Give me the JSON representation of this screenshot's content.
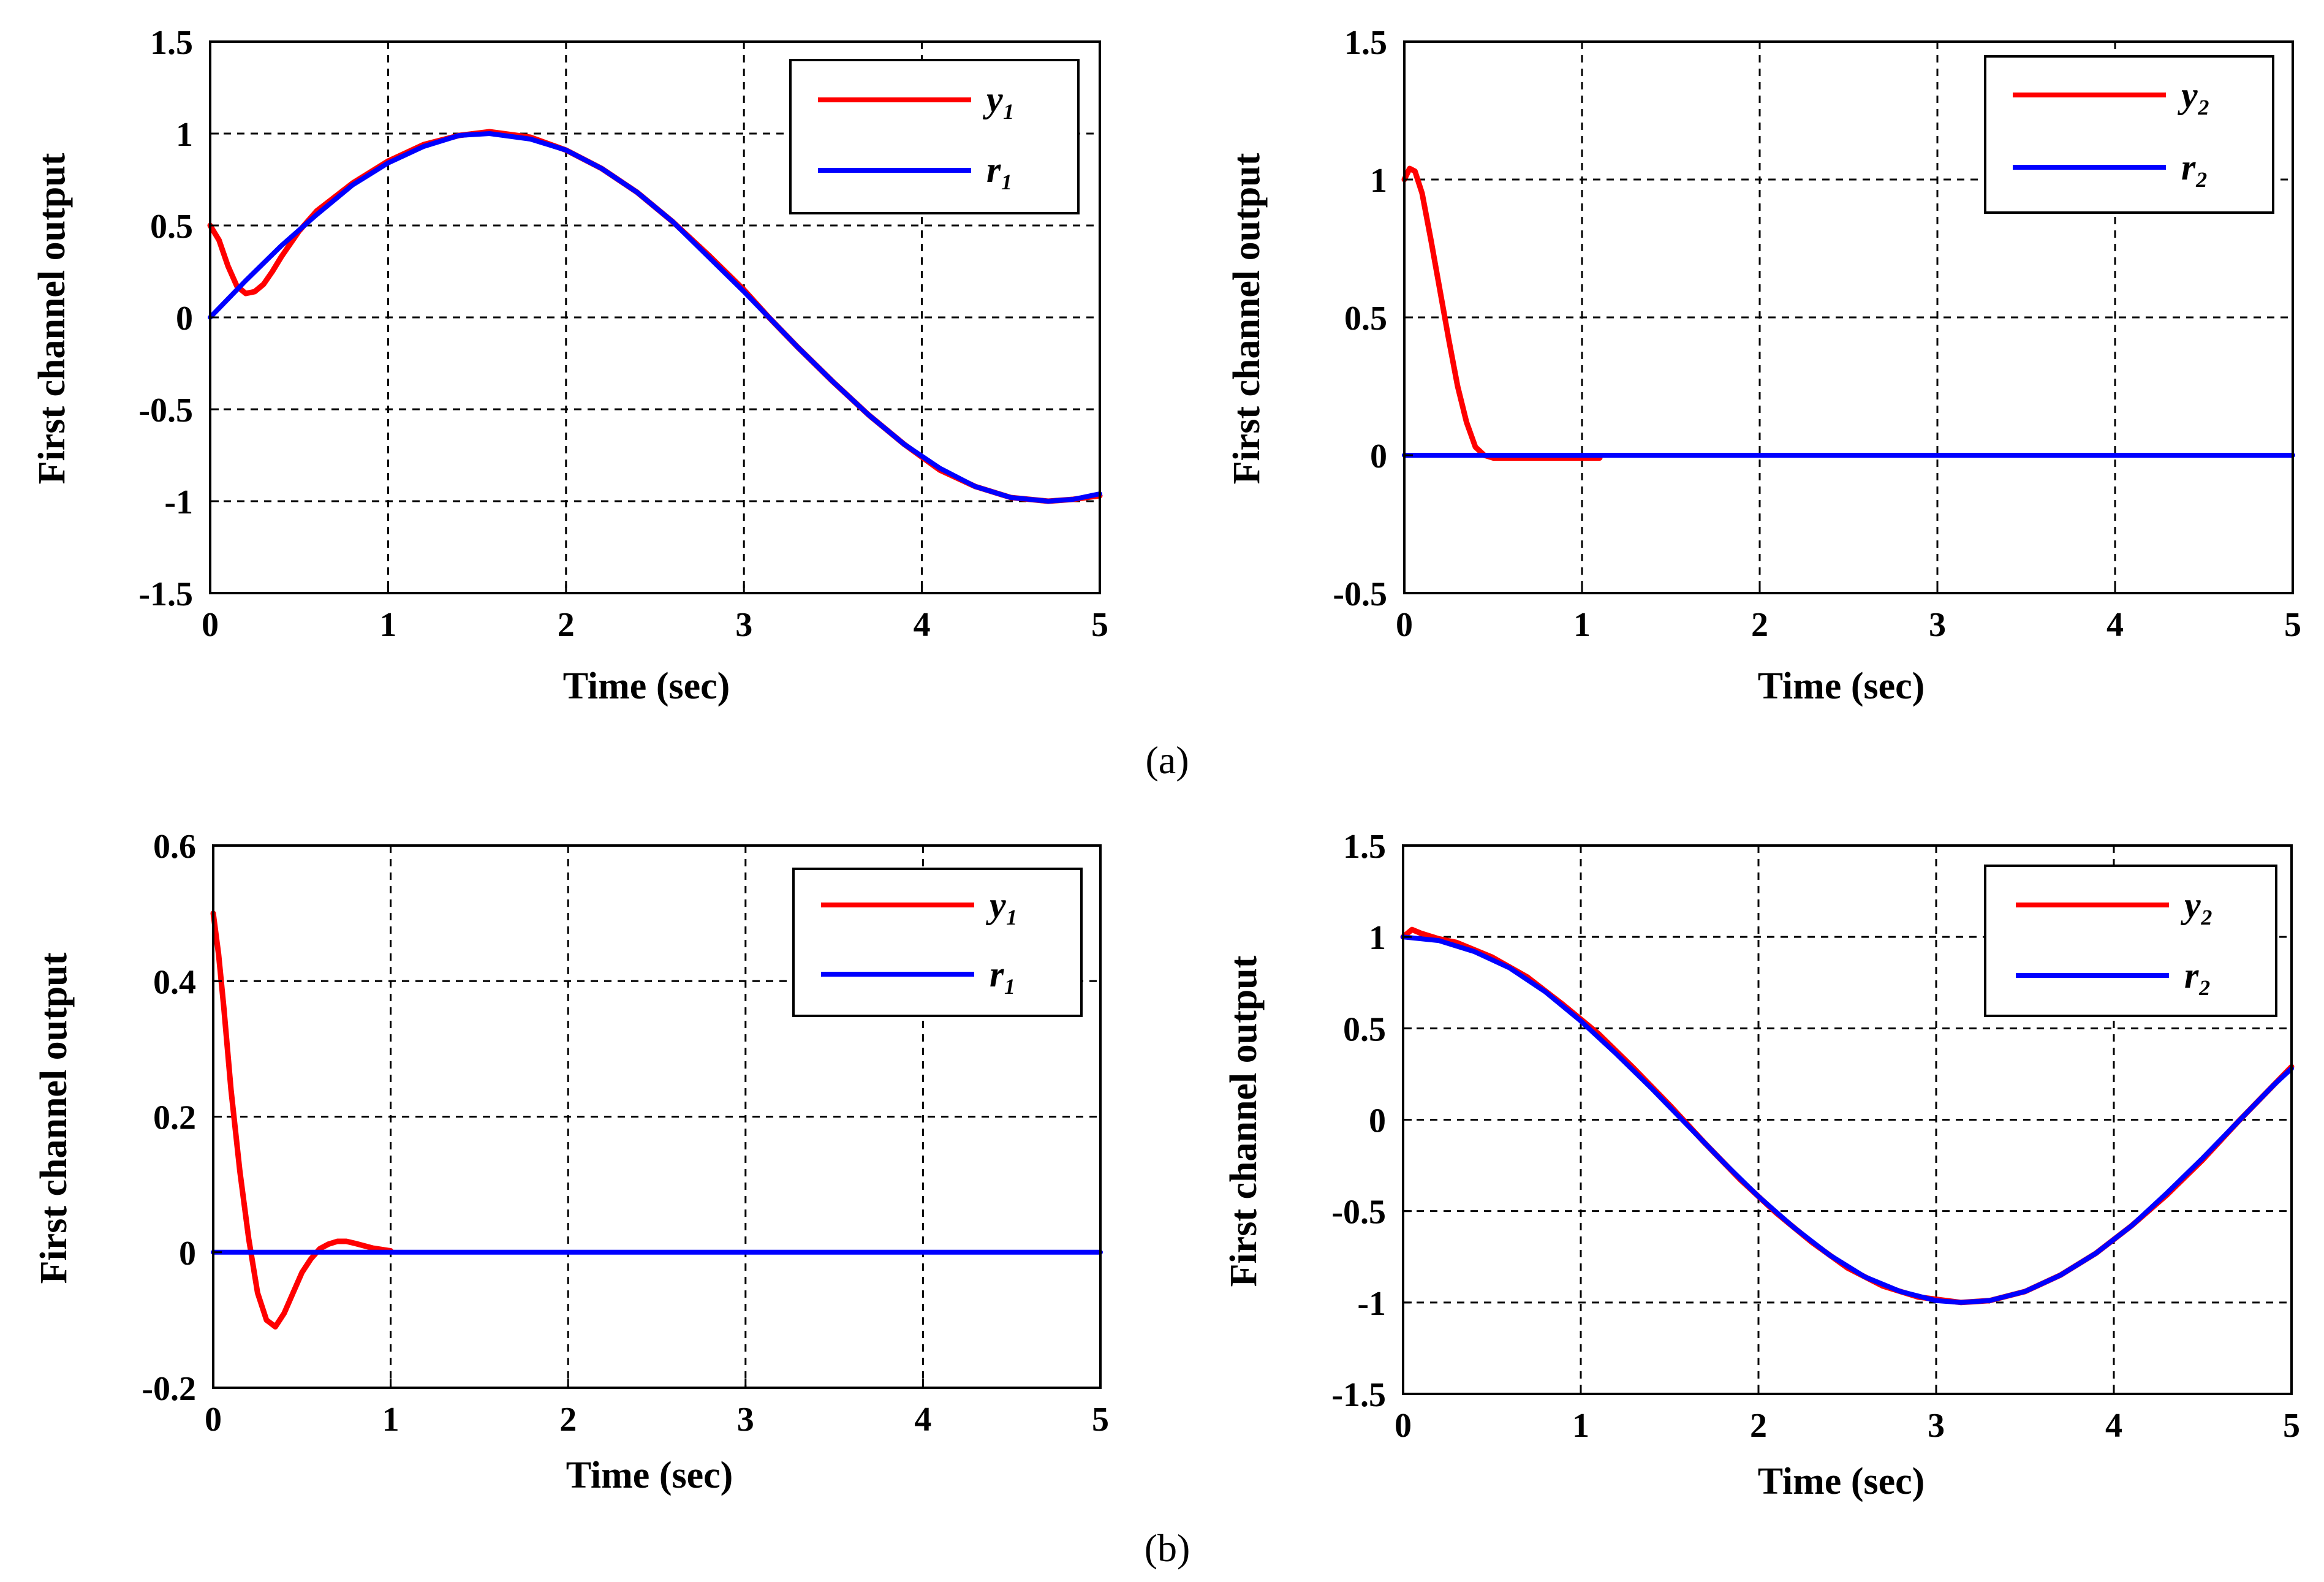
{
  "figure": {
    "captions": [
      "(a)",
      "(b)"
    ]
  },
  "colors": {
    "output": "#ff0000",
    "reference": "#0000ff",
    "grid": "#000000",
    "frame": "#000000"
  },
  "chart_data": [
    {
      "id": "a-left",
      "type": "line",
      "xlabel": "Time (sec)",
      "ylabel": "First channel output",
      "xlim": [
        0,
        5
      ],
      "ylim": [
        -1.5,
        1.5
      ],
      "xticks": [
        0,
        1,
        2,
        3,
        4,
        5
      ],
      "yticks": [
        -1.5,
        -1,
        -0.5,
        0,
        0.5,
        1,
        1.5
      ],
      "xtick_labels": [
        "0",
        "1",
        "2",
        "3",
        "4",
        "5"
      ],
      "ytick_labels": [
        "-1.5",
        "-1",
        "-0.5",
        "0",
        "0.5",
        "1",
        "1.5"
      ],
      "grid": true,
      "legend_position": "top-right",
      "series": [
        {
          "name": "y₁",
          "color": "#ff0000",
          "x": [
            0,
            0.05,
            0.1,
            0.15,
            0.2,
            0.25,
            0.3,
            0.35,
            0.4,
            0.5,
            0.6,
            0.8,
            1.0,
            1.2,
            1.4,
            1.57,
            1.8,
            2.0,
            2.2,
            2.4,
            2.6,
            2.8,
            3.0,
            3.14,
            3.3,
            3.5,
            3.7,
            3.9,
            4.1,
            4.3,
            4.5,
            4.71,
            4.85,
            5.0
          ],
          "y": [
            0.5,
            0.42,
            0.28,
            0.17,
            0.13,
            0.14,
            0.18,
            0.25,
            0.33,
            0.47,
            0.58,
            0.73,
            0.85,
            0.94,
            0.99,
            1.01,
            0.98,
            0.91,
            0.81,
            0.68,
            0.52,
            0.34,
            0.15,
            0.0,
            -0.16,
            -0.35,
            -0.53,
            -0.69,
            -0.83,
            -0.92,
            -0.98,
            -1.0,
            -0.99,
            -0.97
          ]
        },
        {
          "name": "r₁",
          "color": "#0000ff",
          "x": [
            0,
            0.2,
            0.4,
            0.6,
            0.8,
            1.0,
            1.2,
            1.4,
            1.57,
            1.8,
            2.0,
            2.2,
            2.4,
            2.6,
            2.8,
            3.0,
            3.14,
            3.3,
            3.5,
            3.7,
            3.9,
            4.1,
            4.3,
            4.5,
            4.71,
            4.85,
            5.0
          ],
          "y": [
            0.0,
            0.2,
            0.39,
            0.56,
            0.72,
            0.84,
            0.93,
            0.99,
            1.0,
            0.97,
            0.91,
            0.81,
            0.68,
            0.52,
            0.33,
            0.14,
            0.0,
            -0.16,
            -0.35,
            -0.53,
            -0.69,
            -0.82,
            -0.92,
            -0.98,
            -1.0,
            -0.99,
            -0.96
          ]
        }
      ],
      "legend": [
        "y₁",
        "r₁"
      ]
    },
    {
      "id": "a-right",
      "type": "line",
      "xlabel": "Time (sec)",
      "ylabel": "First channel output",
      "xlim": [
        0,
        5
      ],
      "ylim": [
        -0.5,
        1.5
      ],
      "xticks": [
        0,
        1,
        2,
        3,
        4,
        5
      ],
      "yticks": [
        -0.5,
        0,
        0.5,
        1,
        1.5
      ],
      "xtick_labels": [
        "0",
        "1",
        "2",
        "3",
        "4",
        "5"
      ],
      "ytick_labels": [
        "-0.5",
        "0",
        "0.5",
        "1",
        "1.5"
      ],
      "grid": true,
      "legend_position": "top-right",
      "series": [
        {
          "name": "y₂",
          "color": "#ff0000",
          "x": [
            0,
            0.03,
            0.06,
            0.1,
            0.15,
            0.2,
            0.25,
            0.3,
            0.35,
            0.4,
            0.45,
            0.5,
            0.7,
            0.9,
            1.1
          ],
          "y": [
            1.0,
            1.04,
            1.03,
            0.95,
            0.78,
            0.6,
            0.42,
            0.25,
            0.12,
            0.03,
            0.0,
            -0.01,
            -0.01,
            -0.01,
            -0.01
          ]
        },
        {
          "name": "r₂",
          "color": "#0000ff",
          "x": [
            0,
            5
          ],
          "y": [
            0,
            0
          ]
        }
      ],
      "legend": [
        "y₂",
        "r₂"
      ]
    },
    {
      "id": "b-left",
      "type": "line",
      "xlabel": "Time (sec)",
      "ylabel": "First channel output",
      "xlim": [
        0,
        5
      ],
      "ylim": [
        -0.2,
        0.6
      ],
      "xticks": [
        0,
        1,
        2,
        3,
        4,
        5
      ],
      "yticks": [
        -0.2,
        0,
        0.2,
        0.4,
        0.6
      ],
      "xtick_labels": [
        "0",
        "1",
        "2",
        "3",
        "4",
        "5"
      ],
      "ytick_labels": [
        "-0.2",
        "0",
        "0.2",
        "0.4",
        "0.6"
      ],
      "grid": true,
      "legend_position": "top-right",
      "series": [
        {
          "name": "y₁",
          "color": "#ff0000",
          "x": [
            0,
            0.03,
            0.06,
            0.1,
            0.15,
            0.2,
            0.25,
            0.3,
            0.35,
            0.4,
            0.45,
            0.5,
            0.55,
            0.6,
            0.65,
            0.7,
            0.75,
            0.8,
            0.9,
            1.0
          ],
          "y": [
            0.5,
            0.44,
            0.36,
            0.24,
            0.12,
            0.02,
            -0.06,
            -0.1,
            -0.11,
            -0.09,
            -0.06,
            -0.03,
            -0.01,
            0.005,
            0.012,
            0.016,
            0.016,
            0.013,
            0.006,
            0.002
          ]
        },
        {
          "name": "r₁",
          "color": "#0000ff",
          "x": [
            0,
            5
          ],
          "y": [
            0,
            0
          ]
        }
      ],
      "legend": [
        "y₁",
        "r₁"
      ]
    },
    {
      "id": "b-right",
      "type": "line",
      "xlabel": "Time (sec)",
      "ylabel": "First channel output",
      "xlim": [
        0,
        5
      ],
      "ylim": [
        -1.5,
        1.5
      ],
      "xticks": [
        0,
        1,
        2,
        3,
        4,
        5
      ],
      "yticks": [
        -1.5,
        -1,
        -0.5,
        0,
        0.5,
        1,
        1.5
      ],
      "xtick_labels": [
        "0",
        "1",
        "2",
        "3",
        "4",
        "5"
      ],
      "ytick_labels": [
        "-1.5",
        "-1",
        "-0.5",
        "0",
        "0.5",
        "1",
        "1.5"
      ],
      "grid": true,
      "legend_position": "top-right",
      "series": [
        {
          "name": "y₂",
          "color": "#ff0000",
          "x": [
            0,
            0.05,
            0.1,
            0.2,
            0.3,
            0.5,
            0.7,
            0.9,
            1.1,
            1.3,
            1.5,
            1.7,
            1.9,
            2.1,
            2.3,
            2.5,
            2.7,
            2.9,
            3.14,
            3.3,
            3.5,
            3.7,
            3.9,
            4.1,
            4.3,
            4.5,
            4.7,
            4.9,
            5.0
          ],
          "y": [
            1.0,
            1.04,
            1.02,
            0.99,
            0.97,
            0.89,
            0.78,
            0.63,
            0.47,
            0.28,
            0.08,
            -0.13,
            -0.33,
            -0.51,
            -0.67,
            -0.81,
            -0.91,
            -0.97,
            -1.0,
            -0.99,
            -0.94,
            -0.85,
            -0.73,
            -0.58,
            -0.41,
            -0.22,
            -0.01,
            0.19,
            0.29
          ]
        },
        {
          "name": "r₂",
          "color": "#0000ff",
          "x": [
            0,
            0.2,
            0.4,
            0.6,
            0.8,
            1.0,
            1.2,
            1.4,
            1.6,
            1.8,
            2.0,
            2.2,
            2.4,
            2.6,
            2.8,
            3.0,
            3.14,
            3.3,
            3.5,
            3.7,
            3.9,
            4.1,
            4.3,
            4.5,
            4.7,
            4.9,
            5.0
          ],
          "y": [
            1.0,
            0.98,
            0.92,
            0.83,
            0.7,
            0.54,
            0.36,
            0.17,
            -0.03,
            -0.23,
            -0.42,
            -0.59,
            -0.74,
            -0.86,
            -0.94,
            -0.99,
            -1.0,
            -0.99,
            -0.94,
            -0.85,
            -0.73,
            -0.58,
            -0.4,
            -0.21,
            -0.01,
            0.19,
            0.28
          ]
        }
      ],
      "legend": [
        "y₂",
        "r₂"
      ]
    }
  ]
}
